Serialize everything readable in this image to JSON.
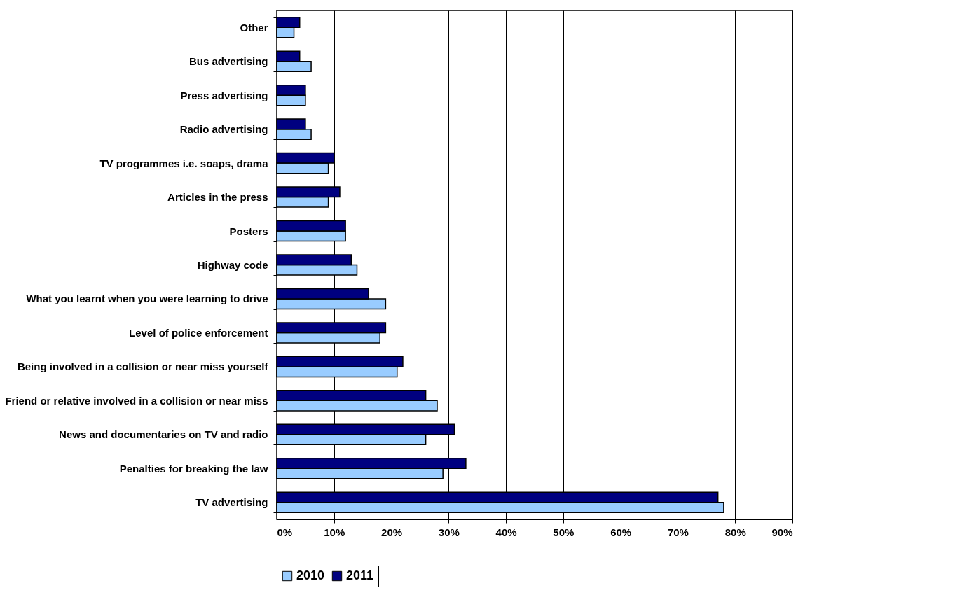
{
  "chart_data": {
    "type": "bar",
    "orientation": "horizontal",
    "categories": [
      "Other",
      "Bus advertising",
      "Press advertising",
      "Radio advertising",
      "TV programmes i.e. soaps, drama",
      "Articles in the press",
      "Posters",
      "Highway code",
      "What you learnt when you were learning to drive",
      "Level of police enforcement",
      "Being involved in a collision or near miss yourself",
      "Friend or relative involved in a collision or near miss",
      "News and documentaries on TV and radio",
      "Penalties for breaking the law",
      "TV advertising"
    ],
    "series": [
      {
        "name": "2010",
        "color": "#99ccff",
        "values": [
          3,
          6,
          5,
          6,
          9,
          9,
          12,
          14,
          19,
          18,
          21,
          28,
          26,
          29,
          78
        ]
      },
      {
        "name": "2011",
        "color": "#000080",
        "values": [
          4,
          4,
          5,
          5,
          10,
          11,
          12,
          13,
          16,
          19,
          22,
          26,
          31,
          33,
          77
        ]
      }
    ],
    "xlim": [
      0,
      90
    ],
    "xticks": [
      {
        "value": 0,
        "label": "0%"
      },
      {
        "value": 10,
        "label": "10%"
      },
      {
        "value": 20,
        "label": "20%"
      },
      {
        "value": 30,
        "label": "30%"
      },
      {
        "value": 40,
        "label": "40%"
      },
      {
        "value": 50,
        "label": "50%"
      },
      {
        "value": 60,
        "label": "60%"
      },
      {
        "value": 70,
        "label": "70%"
      },
      {
        "value": 80,
        "label": "80%"
      },
      {
        "value": 90,
        "label": "90%"
      }
    ],
    "grid": "x",
    "legend": "bottom"
  }
}
